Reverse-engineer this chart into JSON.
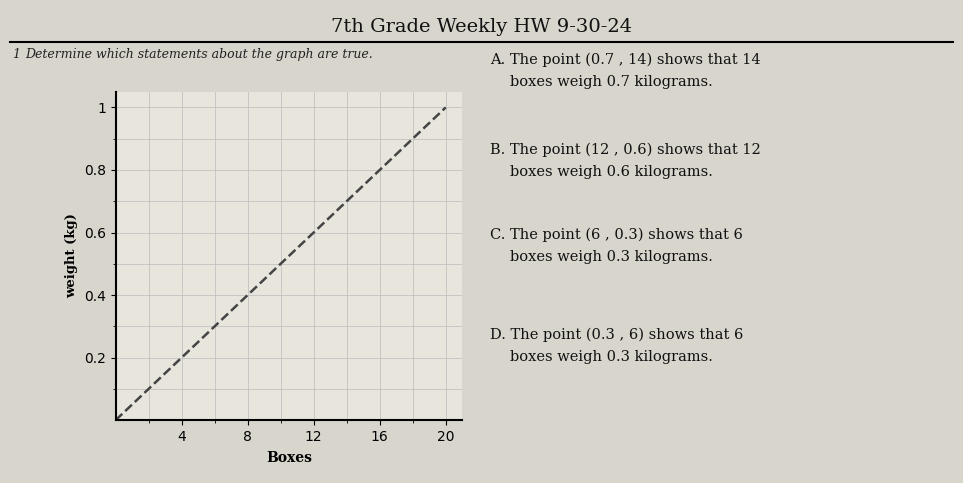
{
  "title": "7th Grade Weekly HW 9-30-24",
  "question_label": "Determine which statements about the graph are true.",
  "question_number": "1",
  "graph": {
    "xlabel": "Boxes",
    "ylabel": "weight (kg)",
    "xlim": [
      0,
      21
    ],
    "ylim": [
      0,
      1.05
    ],
    "xticks": [
      4,
      8,
      12,
      16,
      20
    ],
    "yticks": [
      0.2,
      0.4,
      0.6,
      0.8,
      1.0
    ],
    "ytick_labels": [
      "0.2",
      "0.4",
      "0.6",
      "0.8",
      "1"
    ],
    "minor_xticks": [
      2,
      4,
      6,
      8,
      10,
      12,
      14,
      16,
      18,
      20
    ],
    "minor_yticks": [
      0.1,
      0.2,
      0.3,
      0.4,
      0.5,
      0.6,
      0.7,
      0.8,
      0.9,
      1.0
    ],
    "line_x": [
      0,
      20
    ],
    "line_y": [
      0,
      1.0
    ],
    "line_style": "--",
    "line_color": "#444444",
    "line_width": 1.8,
    "grid_color": "#bbbbbb",
    "grid_linewidth": 0.5
  },
  "choices": [
    {
      "label": "A.",
      "text1": "The point (0.7 , 14) shows that 14",
      "text2": "boxes weigh 0.7 kilograms."
    },
    {
      "label": "B.",
      "text1": "The point (12 , 0.6) shows that 12",
      "text2": "boxes weigh 0.6 kilograms."
    },
    {
      "label": "C.",
      "text1": "The point (6 , 0.3) shows that 6",
      "text2": "boxes weigh 0.3 kilograms."
    },
    {
      "label": "D.",
      "text1": "The point (0.3 , 6) shows that 6",
      "text2": "boxes weigh 0.3 kilograms."
    }
  ],
  "bg_color": "#d8d5cc",
  "plot_bg_color": "#e8e5dc",
  "title_fontsize": 14,
  "label_fontsize": 8.5,
  "choice_fontsize": 10.5,
  "question_fontsize": 9
}
